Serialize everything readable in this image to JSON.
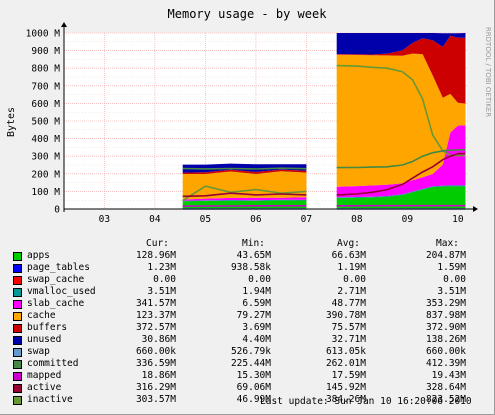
{
  "title": "Memory usage - by week",
  "side_credit": "RRDTOOL / TOBI OETIKER",
  "last_update": "Last update: Sun Jan 10 16:20:06 2010",
  "legend_headers": {
    "cur": "Cur:",
    "min": "Min:",
    "avg": "Avg:",
    "max": "Max:"
  },
  "legend": [
    {
      "name": "apps",
      "color": "#00cc00",
      "cur": "128.96M",
      "min": "43.65M",
      "avg": "66.63M",
      "max": "204.87M"
    },
    {
      "name": "page_tables",
      "color": "#0000ff",
      "cur": "1.23M",
      "min": "938.58k",
      "avg": "1.19M",
      "max": "1.59M"
    },
    {
      "name": "swap_cache",
      "color": "#ff0000",
      "cur": "0.00",
      "min": "0.00",
      "avg": "0.00",
      "max": "0.00"
    },
    {
      "name": "vmalloc_used",
      "color": "#009999",
      "cur": "3.51M",
      "min": "1.94M",
      "avg": "2.71M",
      "max": "3.51M"
    },
    {
      "name": "slab_cache",
      "color": "#ff00ff",
      "cur": "341.57M",
      "min": "6.59M",
      "avg": "48.77M",
      "max": "353.29M"
    },
    {
      "name": "cache",
      "color": "#ffa500",
      "cur": "123.37M",
      "min": "79.27M",
      "avg": "390.78M",
      "max": "837.98M"
    },
    {
      "name": "buffers",
      "color": "#cc0000",
      "cur": "372.57M",
      "min": "3.69M",
      "avg": "75.57M",
      "max": "372.90M"
    },
    {
      "name": "unused",
      "color": "#0000aa",
      "cur": "30.86M",
      "min": "4.40M",
      "avg": "32.71M",
      "max": "138.26M"
    },
    {
      "name": "swap",
      "color": "#6699cc",
      "cur": "660.00k",
      "min": "526.79k",
      "avg": "613.05k",
      "max": "660.00k"
    },
    {
      "name": "committed",
      "color": "#448844",
      "cur": "336.59M",
      "min": "225.44M",
      "avg": "262.01M",
      "max": "412.39M"
    },
    {
      "name": "mapped",
      "color": "#cc00cc",
      "cur": "18.86M",
      "min": "15.30M",
      "avg": "17.59M",
      "max": "19.43M"
    },
    {
      "name": "active",
      "color": "#990033",
      "cur": "316.29M",
      "min": "69.06M",
      "avg": "145.92M",
      "max": "328.64M"
    },
    {
      "name": "inactive",
      "color": "#669933",
      "cur": "303.57M",
      "min": "46.99M",
      "avg": "384.26M",
      "max": "823.52M"
    }
  ],
  "chart_data": {
    "type": "area",
    "title": "Memory usage - by week",
    "ylabel": "Bytes",
    "xlabel": "",
    "ylim": [
      0,
      1000
    ],
    "y_unit": "M",
    "y_ticks": [
      {
        "value": 0,
        "label": "0"
      },
      {
        "value": 100,
        "label": "100 M"
      },
      {
        "value": 200,
        "label": "200 M"
      },
      {
        "value": 300,
        "label": "300 M"
      },
      {
        "value": 400,
        "label": "400 M"
      },
      {
        "value": 500,
        "label": "500 M"
      },
      {
        "value": 600,
        "label": "600 M"
      },
      {
        "value": 700,
        "label": "700 M"
      },
      {
        "value": 800,
        "label": "800 M"
      },
      {
        "value": 900,
        "label": "900 M"
      },
      {
        "value": 1000,
        "label": "1000 M"
      }
    ],
    "x_ticks": [
      {
        "value": 3,
        "label": "03"
      },
      {
        "value": 4,
        "label": "04"
      },
      {
        "value": 5,
        "label": "05"
      },
      {
        "value": 6,
        "label": "06"
      },
      {
        "value": 7,
        "label": "07"
      },
      {
        "value": 8,
        "label": "08"
      },
      {
        "value": 9,
        "label": "09"
      },
      {
        "value": 10,
        "label": "10"
      }
    ],
    "xlim": [
      2.2,
      10.18
    ],
    "grid": true,
    "x": [
      4.55,
      5.0,
      5.5,
      6.0,
      6.5,
      7.0,
      7.15,
      7.6,
      8.0,
      8.3,
      8.6,
      8.9,
      9.1,
      9.3,
      9.5,
      9.7,
      9.85,
      10.0,
      10.15
    ],
    "stack_order": [
      "apps",
      "page_tables",
      "swap_cache",
      "vmalloc_used",
      "slab_cache",
      "cache",
      "buffers",
      "unused"
    ],
    "stacked_series": [
      {
        "name": "apps",
        "values": [
          44,
          46,
          48,
          47,
          49,
          50,
          null,
          62,
          64,
          66,
          70,
          80,
          95,
          110,
          125,
          128,
          129,
          129,
          129
        ]
      },
      {
        "name": "page_tables",
        "values": [
          1,
          1,
          1,
          1,
          1,
          1,
          null,
          1,
          1,
          1,
          1,
          1,
          1,
          1,
          1,
          1,
          1,
          1,
          1
        ]
      },
      {
        "name": "swap_cache",
        "values": [
          0,
          0,
          0,
          0,
          0,
          0,
          null,
          0,
          0,
          0,
          0,
          0,
          0,
          0,
          0,
          0,
          0,
          0,
          0
        ]
      },
      {
        "name": "vmalloc_used",
        "values": [
          2,
          2,
          2,
          2,
          2,
          2,
          null,
          3,
          3,
          3,
          3,
          3,
          3,
          3,
          3,
          3,
          4,
          4,
          4
        ]
      },
      {
        "name": "slab_cache",
        "values": [
          7,
          10,
          12,
          14,
          12,
          14,
          null,
          60,
          62,
          64,
          64,
          62,
          64,
          66,
          70,
          120,
          300,
          340,
          342
        ]
      },
      {
        "name": "cache",
        "values": [
          145,
          140,
          150,
          135,
          150,
          140,
          null,
          750,
          745,
          740,
          735,
          725,
          720,
          700,
          560,
          380,
          220,
          130,
          123
        ]
      },
      {
        "name": "buffers",
        "values": [
          8,
          10,
          10,
          12,
          10,
          10,
          null,
          4,
          4,
          4,
          10,
          30,
          60,
          90,
          200,
          290,
          330,
          370,
          373
        ]
      },
      {
        "name": "unused",
        "values": [
          45,
          43,
          35,
          43,
          30,
          37,
          null,
          120,
          121,
          122,
          117,
          99,
          57,
          30,
          41,
          77,
          15,
          25,
          28
        ]
      }
    ],
    "line_series": [
      {
        "name": "inactive",
        "values": [
          47,
          130,
          95,
          110,
          90,
          100,
          null,
          815,
          812,
          805,
          800,
          780,
          735,
          625,
          420,
          330,
          305,
          303,
          304
        ]
      },
      {
        "name": "committed",
        "values": [
          230,
          228,
          230,
          227,
          232,
          229,
          null,
          235,
          236,
          238,
          240,
          250,
          270,
          300,
          320,
          330,
          334,
          336,
          337
        ]
      },
      {
        "name": "active",
        "values": [
          72,
          75,
          90,
          80,
          85,
          80,
          null,
          80,
          85,
          95,
          110,
          140,
          175,
          210,
          240,
          280,
          300,
          314,
          316
        ]
      },
      {
        "name": "mapped",
        "values": [
          16,
          17,
          17,
          18,
          18,
          18,
          null,
          18,
          18,
          19,
          19,
          19,
          19,
          19,
          19,
          19,
          19,
          19,
          19
        ]
      },
      {
        "name": "swap",
        "values": [
          0.53,
          0.55,
          0.6,
          0.6,
          0.62,
          0.62,
          null,
          0.62,
          0.63,
          0.64,
          0.64,
          0.65,
          0.65,
          0.66,
          0.66,
          0.66,
          0.66,
          0.66,
          0.66
        ]
      }
    ]
  }
}
